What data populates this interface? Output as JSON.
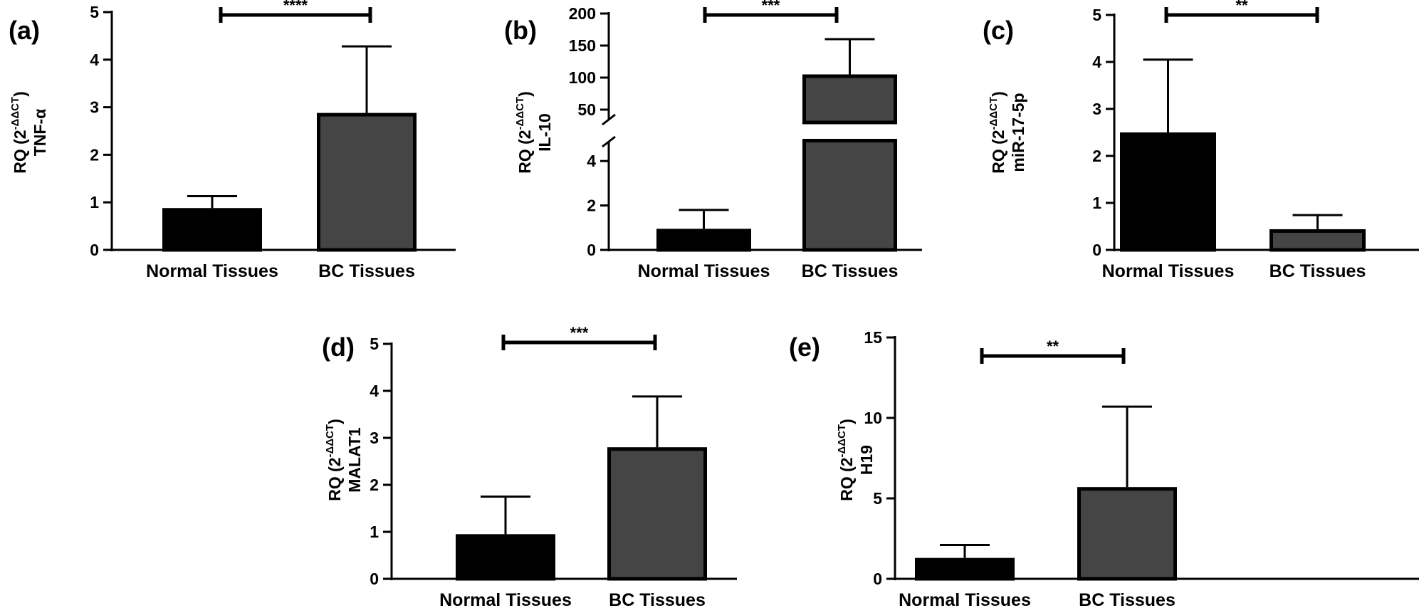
{
  "colors": {
    "normal_bar": "#000000",
    "bc_bar": "#454545",
    "axis": "#000000",
    "background": "#ffffff"
  },
  "chart_data": [
    {
      "id": "a",
      "type": "bar",
      "panel_label": "(a)",
      "ylabel": {
        "prefix": "RQ (2",
        "superscript": "-ΔΔCT",
        "suffix": ")",
        "gene": "TNF-α"
      },
      "categories": [
        "Normal Tissues",
        "BC Tissues"
      ],
      "values": [
        0.88,
        2.88
      ],
      "errors": [
        0.25,
        1.4
      ],
      "ylim": [
        0,
        5
      ],
      "yticks": [
        0,
        1,
        2,
        3,
        4,
        5
      ],
      "significance": "****"
    },
    {
      "id": "b",
      "type": "bar",
      "panel_label": "(b)",
      "ylabel": {
        "prefix": "RQ (2",
        "superscript": "-ΔΔCT",
        "suffix": ")",
        "gene": "IL-10"
      },
      "categories": [
        "Normal Tissues",
        "BC Tissues"
      ],
      "values": [
        0.95,
        105
      ],
      "errors": [
        0.85,
        55
      ],
      "broken_axis": {
        "lower": [
          0,
          5
        ],
        "upper": [
          30,
          200
        ]
      },
      "yticks_lower": [
        0,
        2,
        4
      ],
      "yticks_upper": [
        50,
        100,
        150,
        200
      ],
      "significance": "***"
    },
    {
      "id": "c",
      "type": "bar",
      "panel_label": "(c)",
      "ylabel": {
        "prefix": "RQ (2",
        "superscript": "-ΔΔCT",
        "suffix": ")",
        "gene": "miR-17-5p"
      },
      "categories": [
        "Normal Tissues",
        "BC Tissues"
      ],
      "values": [
        2.5,
        0.44
      ],
      "errors": [
        1.55,
        0.3
      ],
      "ylim": [
        0,
        5
      ],
      "yticks": [
        0,
        1,
        2,
        3,
        4,
        5
      ],
      "significance": "**"
    },
    {
      "id": "d",
      "type": "bar",
      "panel_label": "(d)",
      "ylabel": {
        "prefix": "RQ (2",
        "superscript": "-ΔΔCT",
        "suffix": ")",
        "gene": "MALAT1"
      },
      "categories": [
        "Normal Tissues",
        "BC Tissues"
      ],
      "values": [
        0.95,
        2.8
      ],
      "errors": [
        0.8,
        1.08
      ],
      "ylim": [
        0,
        5
      ],
      "yticks": [
        0,
        1,
        2,
        3,
        4,
        5
      ],
      "significance": "***"
    },
    {
      "id": "e",
      "type": "bar",
      "panel_label": "(e)",
      "ylabel": {
        "prefix": "RQ (2",
        "superscript": "-ΔΔCT",
        "suffix": ")",
        "gene": "H19"
      },
      "categories": [
        "Normal Tissues",
        "BC Tissues"
      ],
      "values": [
        1.3,
        5.7
      ],
      "errors": [
        0.8,
        5.0
      ],
      "ylim": [
        0,
        15
      ],
      "yticks": [
        0,
        5,
        10,
        15
      ],
      "significance": "**"
    }
  ]
}
